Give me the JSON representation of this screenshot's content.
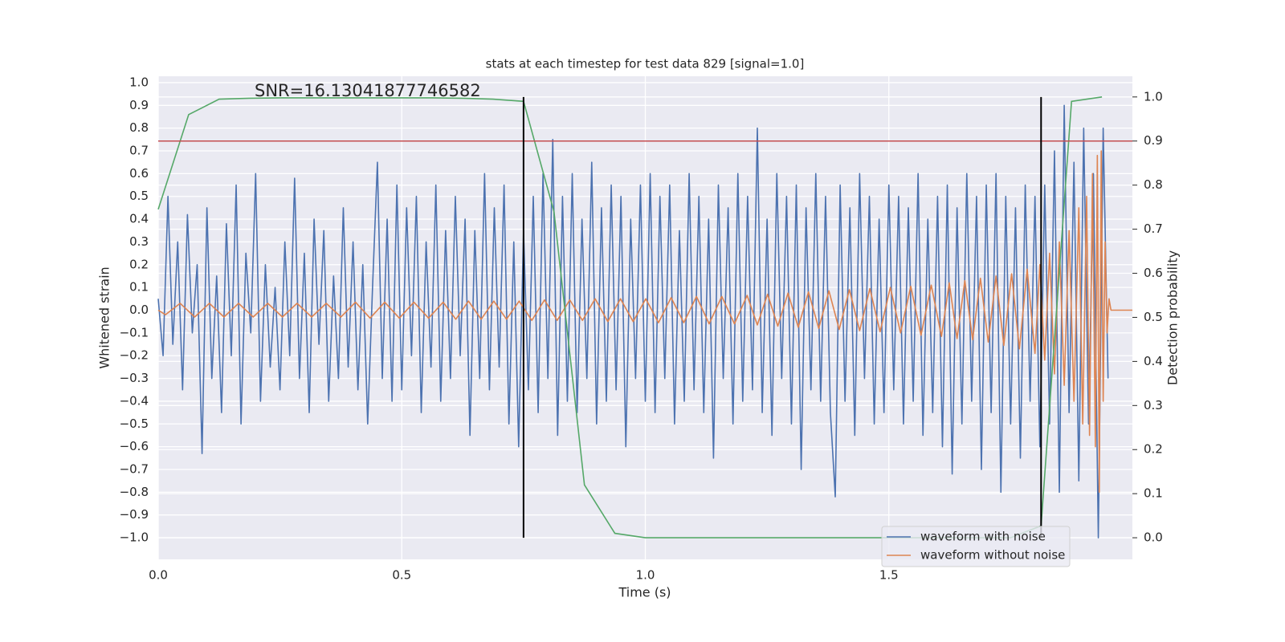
{
  "chart_data": {
    "type": "line",
    "title": "stats at each timestep for test data 829 [signal=1.0]",
    "x_label": "Time (s)",
    "y_label": "Whitened strain",
    "y2_label": "Detection probability",
    "annotation": "SNR=16.13041877746582",
    "xlim": [
      0,
      2.0
    ],
    "ylim": [
      -1.095,
      1.028
    ],
    "y2lim": [
      -0.049,
      1.047
    ],
    "xticks": [
      {
        "value": 0,
        "label": "0.0"
      },
      {
        "value": 0.5,
        "label": "0.5"
      },
      {
        "value": 1.0,
        "label": "1.0"
      },
      {
        "value": 1.5,
        "label": "1.5"
      }
    ],
    "yticks": [
      {
        "value": -1.0,
        "label": "−1.0"
      },
      {
        "value": -0.9,
        "label": "−0.9"
      },
      {
        "value": -0.8,
        "label": "−0.8"
      },
      {
        "value": -0.7,
        "label": "−0.7"
      },
      {
        "value": -0.6,
        "label": "−0.6"
      },
      {
        "value": -0.5,
        "label": "−0.5"
      },
      {
        "value": -0.4,
        "label": "−0.4"
      },
      {
        "value": -0.3,
        "label": "−0.3"
      },
      {
        "value": -0.2,
        "label": "−0.2"
      },
      {
        "value": -0.1,
        "label": "−0.1"
      },
      {
        "value": 0.0,
        "label": "0.0"
      },
      {
        "value": 0.1,
        "label": "0.1"
      },
      {
        "value": 0.2,
        "label": "0.2"
      },
      {
        "value": 0.3,
        "label": "0.3"
      },
      {
        "value": 0.4,
        "label": "0.4"
      },
      {
        "value": 0.5,
        "label": "0.5"
      },
      {
        "value": 0.6,
        "label": "0.6"
      },
      {
        "value": 0.7,
        "label": "0.7"
      },
      {
        "value": 0.8,
        "label": "0.8"
      },
      {
        "value": 0.9,
        "label": "0.9"
      },
      {
        "value": 1.0,
        "label": "1.0"
      }
    ],
    "y2ticks": [
      {
        "value": 0.0,
        "label": "0.0"
      },
      {
        "value": 0.1,
        "label": "0.1"
      },
      {
        "value": 0.2,
        "label": "0.2"
      },
      {
        "value": 0.3,
        "label": "0.3"
      },
      {
        "value": 0.4,
        "label": "0.4"
      },
      {
        "value": 0.5,
        "label": "0.5"
      },
      {
        "value": 0.6,
        "label": "0.6"
      },
      {
        "value": 0.7,
        "label": "0.7"
      },
      {
        "value": 0.8,
        "label": "0.8"
      },
      {
        "value": 0.9,
        "label": "0.9"
      },
      {
        "value": 1.0,
        "label": "1.0"
      }
    ],
    "grid": true,
    "legend": "lower right",
    "series": [
      {
        "name": "waveform with noise",
        "color": "#4c72b0",
        "x": [
          0,
          0.01,
          0.02,
          0.03,
          0.04,
          0.05,
          0.06,
          0.07,
          0.08,
          0.09,
          0.1,
          0.11,
          0.12,
          0.13,
          0.14,
          0.15,
          0.16,
          0.17,
          0.18,
          0.19,
          0.2,
          0.21,
          0.22,
          0.23,
          0.24,
          0.25,
          0.26,
          0.27,
          0.28,
          0.29,
          0.3,
          0.31,
          0.32,
          0.33,
          0.34,
          0.35,
          0.36,
          0.37,
          0.38,
          0.39,
          0.4,
          0.41,
          0.42,
          0.43,
          0.44,
          0.45,
          0.46,
          0.47,
          0.48,
          0.49,
          0.5,
          0.51,
          0.52,
          0.53,
          0.54,
          0.55,
          0.56,
          0.57,
          0.58,
          0.59,
          0.6,
          0.61,
          0.62,
          0.63,
          0.64,
          0.65,
          0.66,
          0.67,
          0.68,
          0.69,
          0.7,
          0.71,
          0.72,
          0.73,
          0.74,
          0.75,
          0.76,
          0.77,
          0.78,
          0.79,
          0.8,
          0.81,
          0.82,
          0.83,
          0.84,
          0.85,
          0.86,
          0.87,
          0.88,
          0.89,
          0.9,
          0.91,
          0.92,
          0.93,
          0.94,
          0.95,
          0.96,
          0.97,
          0.98,
          0.99,
          1.0,
          1.01,
          1.02,
          1.03,
          1.04,
          1.05,
          1.06,
          1.07,
          1.08,
          1.09,
          1.1,
          1.11,
          1.12,
          1.13,
          1.14,
          1.15,
          1.16,
          1.17,
          1.18,
          1.19,
          1.2,
          1.21,
          1.22,
          1.23,
          1.24,
          1.25,
          1.26,
          1.27,
          1.28,
          1.29,
          1.3,
          1.31,
          1.32,
          1.33,
          1.34,
          1.35,
          1.36,
          1.37,
          1.38,
          1.39,
          1.4,
          1.41,
          1.42,
          1.43,
          1.44,
          1.45,
          1.46,
          1.47,
          1.48,
          1.49,
          1.5,
          1.51,
          1.52,
          1.53,
          1.54,
          1.55,
          1.56,
          1.57,
          1.58,
          1.59,
          1.6,
          1.61,
          1.62,
          1.63,
          1.64,
          1.65,
          1.66,
          1.67,
          1.68,
          1.69,
          1.7,
          1.71,
          1.72,
          1.73,
          1.74,
          1.75,
          1.76,
          1.77,
          1.78,
          1.79,
          1.8,
          1.81,
          1.82,
          1.83,
          1.84,
          1.85,
          1.86,
          1.87,
          1.88,
          1.89,
          1.9,
          1.91,
          1.92,
          1.93,
          1.94,
          1.95
        ],
        "values": [
          0.05,
          -0.2,
          0.5,
          -0.15,
          0.3,
          -0.35,
          0.42,
          -0.1,
          0.2,
          -0.63,
          0.45,
          -0.3,
          0.15,
          -0.45,
          0.38,
          -0.2,
          0.55,
          -0.5,
          0.25,
          -0.1,
          0.6,
          -0.4,
          0.2,
          -0.25,
          0.1,
          -0.35,
          0.3,
          -0.2,
          0.58,
          -0.3,
          0.25,
          -0.45,
          0.4,
          -0.15,
          0.35,
          -0.4,
          0.15,
          -0.3,
          0.45,
          -0.25,
          0.3,
          -0.35,
          0.2,
          -0.5,
          0.1,
          0.65,
          -0.3,
          0.4,
          -0.4,
          0.55,
          -0.35,
          0.45,
          -0.2,
          0.5,
          -0.45,
          0.3,
          -0.25,
          0.55,
          -0.4,
          0.35,
          -0.3,
          0.5,
          -0.2,
          0.4,
          -0.55,
          0.35,
          -0.3,
          0.6,
          -0.35,
          0.45,
          -0.25,
          0.55,
          -0.5,
          0.3,
          -0.6,
          0.35,
          -0.35,
          0.5,
          -0.45,
          0.6,
          -0.3,
          0.75,
          -0.55,
          0.5,
          -0.4,
          0.6,
          -0.45,
          0.4,
          -0.3,
          0.65,
          -0.5,
          0.45,
          -0.4,
          0.55,
          -0.35,
          0.5,
          -0.6,
          0.4,
          -0.3,
          0.55,
          -0.4,
          0.6,
          -0.45,
          0.5,
          -0.3,
          0.55,
          -0.5,
          0.35,
          -0.4,
          0.6,
          -0.35,
          0.5,
          -0.45,
          0.4,
          -0.65,
          0.55,
          -0.3,
          0.45,
          -0.5,
          0.6,
          -0.4,
          0.5,
          -0.35,
          0.8,
          -0.45,
          0.4,
          -0.55,
          0.6,
          -0.3,
          0.5,
          -0.5,
          0.55,
          -0.7,
          0.45,
          -0.35,
          0.6,
          -0.4,
          0.5,
          -0.45,
          -0.82,
          0.55,
          -0.4,
          0.45,
          -0.55,
          0.6,
          -0.3,
          0.5,
          -0.5,
          0.4,
          -0.45,
          0.55,
          -0.35,
          0.5,
          -0.5,
          0.45,
          -0.4,
          0.6,
          -0.55,
          0.4,
          -0.45,
          0.5,
          -0.6,
          0.55,
          -0.72,
          0.45,
          -0.5,
          0.6,
          -0.4,
          0.5,
          -0.7,
          0.55,
          -0.45,
          0.6,
          -0.8,
          0.5,
          -0.5,
          0.45,
          -0.65,
          0.55,
          -0.4,
          0.5,
          -0.6,
          0.55,
          -0.5,
          0.7,
          -0.8,
          0.9,
          -0.45,
          0.65,
          -0.75,
          0.8,
          -0.5,
          0.6,
          -1.0,
          0.8,
          -0.3
        ]
      },
      {
        "name": "waveform without noise",
        "color": "#dd8452",
        "x": [
          0,
          0.015,
          0.045,
          0.075,
          0.105,
          0.135,
          0.165,
          0.195,
          0.225,
          0.255,
          0.285,
          0.315,
          0.345,
          0.375,
          0.405,
          0.435,
          0.465,
          0.495,
          0.525,
          0.555,
          0.585,
          0.611,
          0.637,
          0.663,
          0.689,
          0.715,
          0.741,
          0.767,
          0.793,
          0.819,
          0.845,
          0.871,
          0.897,
          0.923,
          0.949,
          0.975,
          1.001,
          1.027,
          1.053,
          1.079,
          1.105,
          1.131,
          1.157,
          1.183,
          1.209,
          1.23,
          1.251,
          1.272,
          1.293,
          1.314,
          1.335,
          1.356,
          1.377,
          1.398,
          1.419,
          1.44,
          1.461,
          1.482,
          1.503,
          1.524,
          1.545,
          1.566,
          1.587,
          1.608,
          1.624,
          1.64,
          1.656,
          1.672,
          1.688,
          1.704,
          1.72,
          1.736,
          1.752,
          1.768,
          1.784,
          1.8,
          1.81,
          1.82,
          1.83,
          1.84,
          1.85,
          1.86,
          1.87,
          1.88,
          1.89,
          1.898,
          1.906,
          1.912,
          1.918,
          1.924,
          1.928,
          1.932,
          1.936,
          1.94,
          1.944,
          1.948,
          1.952,
          1.956,
          2.0
        ],
        "values": [
          0.0,
          -0.02,
          0.03,
          -0.03,
          0.03,
          -0.03,
          0.03,
          -0.03,
          0.03,
          -0.03,
          0.03,
          -0.03,
          0.03,
          -0.03,
          0.035,
          -0.035,
          0.035,
          -0.035,
          0.035,
          -0.035,
          0.035,
          -0.04,
          0.04,
          -0.04,
          0.04,
          -0.04,
          0.04,
          -0.045,
          0.045,
          -0.045,
          0.045,
          -0.045,
          0.05,
          -0.05,
          0.05,
          -0.05,
          0.05,
          -0.055,
          0.055,
          -0.055,
          0.06,
          -0.06,
          0.06,
          -0.06,
          0.065,
          -0.065,
          0.07,
          -0.07,
          0.075,
          -0.075,
          0.08,
          -0.08,
          0.085,
          -0.085,
          0.09,
          -0.09,
          0.095,
          -0.095,
          0.1,
          -0.1,
          0.105,
          -0.11,
          0.11,
          -0.115,
          0.12,
          -0.125,
          0.13,
          -0.13,
          0.14,
          -0.14,
          0.15,
          -0.155,
          0.16,
          -0.17,
          0.18,
          -0.19,
          0.2,
          -0.22,
          0.25,
          -0.28,
          0.3,
          -0.33,
          0.35,
          -0.4,
          0.45,
          -0.5,
          0.5,
          -0.55,
          0.6,
          -0.6,
          0.68,
          -0.8,
          0.7,
          -0.4,
          0.3,
          -0.1,
          0.05,
          0.0,
          0.0
        ]
      }
    ],
    "detection": {
      "color": "#55a868",
      "axis": "y2",
      "x": [
        0,
        0.0625,
        0.125,
        0.1875,
        0.25,
        0.3125,
        0.375,
        0.4375,
        0.5,
        0.5625,
        0.625,
        0.6875,
        0.75,
        0.8125,
        0.875,
        0.9375,
        1.0,
        1.0625,
        1.125,
        1.1875,
        1.25,
        1.3125,
        1.375,
        1.4375,
        1.5,
        1.5625,
        1.625,
        1.6875,
        1.75,
        1.8125,
        1.875,
        1.9375
      ],
      "values": [
        0.745,
        0.96,
        0.995,
        0.997,
        0.998,
        0.998,
        0.998,
        0.998,
        0.998,
        0.998,
        0.997,
        0.995,
        0.99,
        0.74,
        0.12,
        0.01,
        0.0,
        0.0,
        0.0,
        0.0,
        0.0,
        0.0,
        0.0,
        0.0,
        0.0,
        0.0,
        0.0,
        0.0,
        0.0,
        0.027,
        0.99,
        1.0
      ]
    },
    "threshold": {
      "value": 0.9,
      "color": "#c44e52",
      "axis": "y2"
    },
    "markers": {
      "x": [
        0.75,
        1.8125
      ],
      "ymin": 0,
      "ymax": 1,
      "color": "#000000",
      "axis": "y2"
    }
  }
}
